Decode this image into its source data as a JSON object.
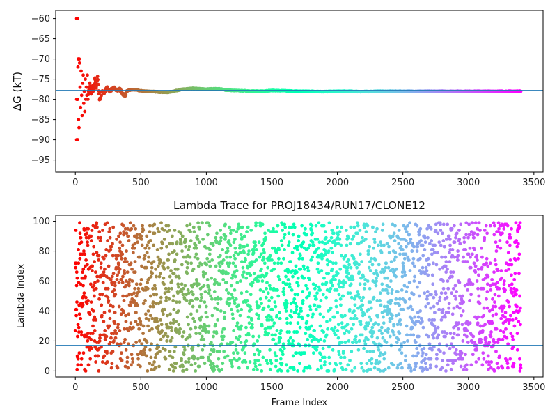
{
  "chart_data": [
    {
      "type": "scatter",
      "title": "",
      "xlabel": "",
      "ylabel": "ΔG (kT)",
      "xlim": [
        -150,
        3570
      ],
      "ylim": [
        -98,
        -58
      ],
      "xticks": [
        0,
        500,
        1000,
        1500,
        2000,
        2500,
        3000,
        3500
      ],
      "yticks": [
        -95,
        -90,
        -85,
        -80,
        -75,
        -70,
        -65,
        -60
      ],
      "colormap": "rainbow",
      "reference_line": {
        "y": -77.8,
        "color": "#1f77b4"
      },
      "x_range": [
        0,
        3400
      ],
      "series": [
        {
          "description_points": "running free energy estimate per frame, converging from noisy values to about -78",
          "points": [
            [
              10,
              -60
            ],
            [
              14,
              -60
            ],
            [
              18,
              -60
            ],
            [
              10,
              -90
            ],
            [
              14,
              -90
            ],
            [
              18,
              -90
            ],
            [
              10,
              -80
            ],
            [
              14,
              -80
            ],
            [
              18,
              -80
            ],
            [
              22,
              -70
            ],
            [
              26,
              -70
            ],
            [
              30,
              -70
            ],
            [
              20,
              -72
            ],
            [
              24,
              -85
            ],
            [
              28,
              -87
            ],
            [
              32,
              -71
            ],
            [
              36,
              -77
            ],
            [
              40,
              -82
            ],
            [
              44,
              -73
            ],
            [
              48,
              -79
            ],
            [
              52,
              -84
            ],
            [
              56,
              -76
            ],
            [
              60,
              -74
            ],
            [
              64,
              -81
            ],
            [
              68,
              -78
            ],
            [
              72,
              -83
            ],
            [
              76,
              -75
            ],
            [
              80,
              -80
            ],
            [
              84,
              -77
            ],
            [
              88,
              -79
            ],
            [
              92,
              -74
            ],
            [
              96,
              -80
            ],
            [
              100,
              -78
            ],
            [
              110,
              -76
            ],
            [
              120,
              -79
            ],
            [
              130,
              -77
            ],
            [
              140,
              -78
            ],
            [
              150,
              -75
            ],
            [
              160,
              -77
            ],
            [
              170,
              -74
            ],
            [
              180,
              -79
            ],
            [
              190,
              -80
            ],
            [
              200,
              -78
            ],
            [
              220,
              -78.5
            ],
            [
              240,
              -77
            ],
            [
              260,
              -78
            ],
            [
              280,
              -77.5
            ],
            [
              300,
              -77.2
            ],
            [
              320,
              -77.8
            ],
            [
              340,
              -77.5
            ],
            [
              360,
              -78.6
            ],
            [
              380,
              -79
            ],
            [
              400,
              -77.8
            ],
            [
              450,
              -77.6
            ],
            [
              500,
              -77.9
            ],
            [
              550,
              -78
            ],
            [
              600,
              -78.1
            ],
            [
              650,
              -78.2
            ],
            [
              700,
              -78.3
            ],
            [
              750,
              -78
            ],
            [
              800,
              -77.6
            ],
            [
              850,
              -77.4
            ],
            [
              900,
              -77.3
            ],
            [
              950,
              -77.4
            ],
            [
              1000,
              -77.5
            ],
            [
              1050,
              -77.4
            ],
            [
              1100,
              -77.4
            ],
            [
              1150,
              -77.7
            ],
            [
              1200,
              -77.8
            ],
            [
              1300,
              -77.9
            ],
            [
              1400,
              -78
            ],
            [
              1500,
              -77.8
            ],
            [
              1600,
              -77.9
            ],
            [
              1700,
              -78
            ],
            [
              1800,
              -78
            ],
            [
              1900,
              -78.1
            ],
            [
              2000,
              -78
            ],
            [
              2100,
              -78
            ],
            [
              2200,
              -78.1
            ],
            [
              2300,
              -78
            ],
            [
              2400,
              -78
            ],
            [
              2500,
              -78
            ],
            [
              2600,
              -78
            ],
            [
              2700,
              -78
            ],
            [
              2800,
              -78
            ],
            [
              2900,
              -78
            ],
            [
              3000,
              -78
            ],
            [
              3100,
              -78
            ],
            [
              3200,
              -78
            ],
            [
              3300,
              -78
            ],
            [
              3400,
              -78
            ]
          ]
        }
      ]
    },
    {
      "type": "scatter",
      "title": "Lambda Trace for PROJ18434/RUN17/CLONE12",
      "xlabel": "Frame Index",
      "ylabel": "Lambda Index",
      "xlim": [
        -150,
        3570
      ],
      "ylim": [
        -4,
        104
      ],
      "xticks": [
        0,
        500,
        1000,
        1500,
        2000,
        2500,
        3000,
        3500
      ],
      "yticks": [
        0,
        20,
        40,
        60,
        80,
        100
      ],
      "colormap": "rainbow",
      "reference_line": {
        "y": 17,
        "color": "#1f77b4"
      },
      "x_range": [
        0,
        3400
      ],
      "lambda_range": [
        0,
        99
      ],
      "frame_count": 3400,
      "frame_step": 1.2
    }
  ]
}
